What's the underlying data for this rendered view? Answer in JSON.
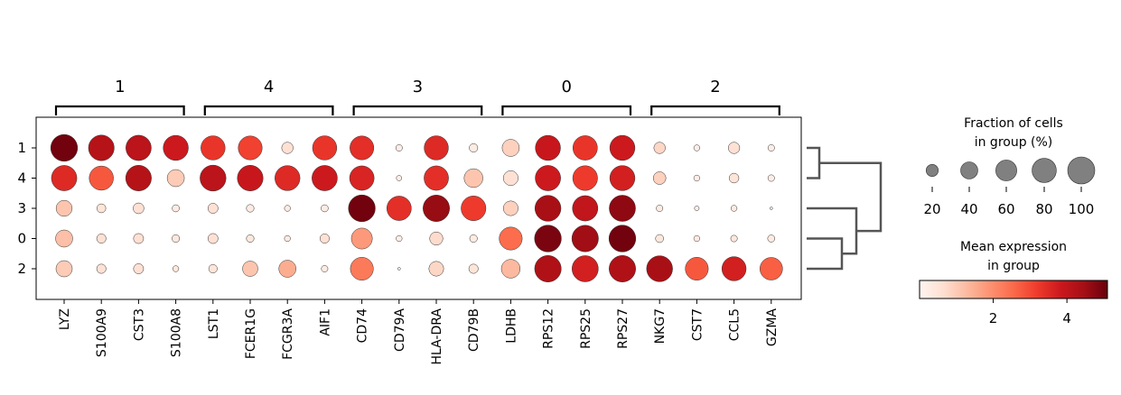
{
  "chart_data": {
    "type": "dotplot",
    "genes": [
      "LYZ",
      "S100A9",
      "CST3",
      "S100A8",
      "LST1",
      "FCER1G",
      "FCGR3A",
      "AIF1",
      "CD74",
      "CD79A",
      "HLA-DRA",
      "CD79B",
      "LDHB",
      "RPS12",
      "RPS25",
      "RPS27",
      "NKG7",
      "CST7",
      "CCL5",
      "GZMA"
    ],
    "gene_groups": [
      {
        "label": "1",
        "start": 0,
        "end": 3
      },
      {
        "label": "4",
        "start": 4,
        "end": 7
      },
      {
        "label": "3",
        "start": 8,
        "end": 11
      },
      {
        "label": "0",
        "start": 12,
        "end": 15
      },
      {
        "label": "2",
        "start": 16,
        "end": 19
      }
    ],
    "groups": [
      "1",
      "4",
      "3",
      "0",
      "2"
    ],
    "fraction_pct": [
      [
        98,
        90,
        88,
        86,
        80,
        78,
        18,
        80,
        78,
        6,
        80,
        10,
        40,
        86,
        82,
        86,
        18,
        5,
        18,
        6
      ],
      [
        88,
        80,
        90,
        40,
        92,
        90,
        86,
        88,
        82,
        4,
        82,
        48,
        30,
        88,
        84,
        86,
        22,
        5,
        13,
        6
      ],
      [
        35,
        11,
        16,
        7,
        14,
        8,
        5,
        7,
        98,
        82,
        96,
        84,
        30,
        92,
        88,
        94,
        6,
        3,
        5,
        1
      ],
      [
        40,
        12,
        14,
        8,
        14,
        8,
        5,
        12,
        60,
        5,
        24,
        8,
        72,
        98,
        96,
        98,
        9,
        5,
        6,
        7
      ],
      [
        36,
        12,
        14,
        5,
        10,
        32,
        40,
        6,
        72,
        1,
        30,
        12,
        48,
        96,
        94,
        96,
        92,
        72,
        80,
        70
      ]
    ],
    "mean_expression": [
      [
        5.0,
        4.2,
        4.1,
        3.8,
        3.3,
        3.1,
        0.6,
        3.3,
        3.4,
        0.2,
        3.5,
        0.3,
        0.9,
        3.9,
        3.3,
        3.8,
        0.8,
        0.2,
        0.6,
        0.2
      ],
      [
        3.5,
        2.8,
        4.2,
        1.0,
        4.1,
        3.9,
        3.5,
        3.8,
        3.6,
        0.2,
        3.4,
        1.1,
        0.6,
        3.8,
        3.2,
        3.7,
        0.9,
        0.2,
        0.5,
        0.2
      ],
      [
        1.1,
        0.5,
        0.6,
        0.3,
        0.6,
        0.3,
        0.3,
        0.3,
        5.0,
        3.4,
        4.6,
        3.2,
        0.9,
        4.4,
        4.0,
        4.7,
        0.3,
        0.2,
        0.3,
        0.1
      ],
      [
        1.2,
        0.6,
        0.6,
        0.4,
        0.6,
        0.4,
        0.3,
        0.6,
        1.8,
        0.2,
        0.7,
        0.3,
        2.5,
        4.9,
        4.5,
        5.0,
        0.4,
        0.3,
        0.4,
        0.3
      ],
      [
        1.0,
        0.6,
        0.6,
        0.4,
        0.5,
        1.1,
        1.5,
        0.3,
        2.3,
        0.1,
        0.8,
        0.5,
        1.3,
        4.3,
        3.7,
        4.3,
        4.4,
        2.8,
        3.7,
        2.7
      ]
    ],
    "dendrogram": {
      "leaf_order": [
        "1",
        "4",
        "3",
        "0",
        "2"
      ],
      "merges": [
        [
          "1",
          "4"
        ],
        [
          "0",
          "2"
        ],
        [
          "3",
          "0+2"
        ],
        [
          "1+4",
          "3+0+2"
        ]
      ]
    },
    "size_legend": {
      "title": "Fraction of cells\nin group (%)",
      "title_lines": [
        "Fraction of cells",
        "in group (%)"
      ],
      "values": [
        20,
        40,
        60,
        80,
        100
      ],
      "labels": [
        "20",
        "40",
        "60",
        "80",
        "100"
      ]
    },
    "color_legend": {
      "title_lines": [
        "Mean expression",
        "in group"
      ],
      "range": [
        0,
        5.1
      ],
      "ticks": [
        2,
        4
      ],
      "tick_labels": [
        "2",
        "4"
      ],
      "colormap": "Reds"
    },
    "grid": false
  }
}
